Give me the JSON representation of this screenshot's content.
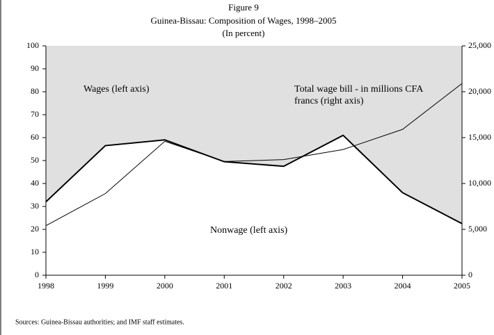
{
  "chart_data": {
    "type": "stacked_area_line",
    "title": "Figure 9",
    "subtitle": "Guinea-Bissau: Composition of Wages, 1998–2005",
    "unit_note": "(In percent)",
    "source": "Sources: Guinea-Bissau authorities; and IMF staff estimates.",
    "categories": [
      "1998",
      "1999",
      "2000",
      "2001",
      "2002",
      "2003",
      "2004",
      "2005"
    ],
    "series": [
      {
        "name": "Nonwage (left axis)",
        "color": "#ffffff",
        "values": [
          32,
          56.5,
          59,
          49.5,
          47.5,
          61,
          36,
          22.5
        ]
      },
      {
        "name": "Wages (left axis)",
        "color": "#e0e0e0",
        "values": [
          68,
          43.5,
          41,
          50.5,
          52.5,
          39,
          64,
          77.5
        ]
      },
      {
        "name": "Total wage bill - in millions CFA francs (right axis)",
        "color": "#000000",
        "axis": "y2",
        "values": [
          5400,
          8900,
          14600,
          12400,
          12600,
          13700,
          15900,
          20900
        ]
      }
    ],
    "ylim": [
      0,
      100
    ],
    "yticks": [
      0,
      10,
      20,
      30,
      40,
      50,
      60,
      70,
      80,
      90,
      100
    ],
    "y2lim": [
      0,
      25000
    ],
    "y2ticks": [
      0,
      {
        "value": 5000,
        "label": "5,000"
      },
      {
        "value": 10000,
        "label": "10,000"
      },
      {
        "value": 15000,
        "label": "15,000"
      },
      {
        "value": 20000,
        "label": "20,000"
      },
      {
        "value": 25000,
        "label": "25,000"
      }
    ]
  }
}
